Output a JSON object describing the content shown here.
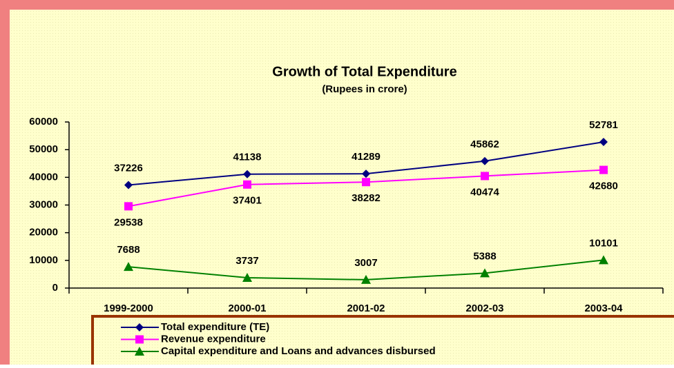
{
  "chart_data": {
    "type": "line",
    "title": "Growth of Total Expenditure",
    "subtitle": "(Rupees in crore)",
    "categories": [
      "1999-2000",
      "2000-01",
      "2001-02",
      "2002-03",
      "2003-04"
    ],
    "series": [
      {
        "name": "Total expenditure (TE)",
        "color": "#000080",
        "marker": "diamond",
        "values": [
          37226,
          41138,
          41289,
          45862,
          52781
        ],
        "label_position": "above"
      },
      {
        "name": "Revenue expenditure",
        "color": "#ff00ff",
        "marker": "square",
        "values": [
          29538,
          37401,
          38282,
          40474,
          42680
        ],
        "label_position": "below"
      },
      {
        "name": "Capital expenditure and Loans and advances disbursed",
        "color": "#008000",
        "marker": "triangle",
        "values": [
          7688,
          3737,
          3007,
          5388,
          10101
        ],
        "label_position": "above"
      }
    ],
    "ylim": [
      0,
      60000
    ],
    "yticks": [
      0,
      10000,
      20000,
      30000,
      40000,
      50000,
      60000
    ],
    "grid": false,
    "legend": "bottom"
  }
}
